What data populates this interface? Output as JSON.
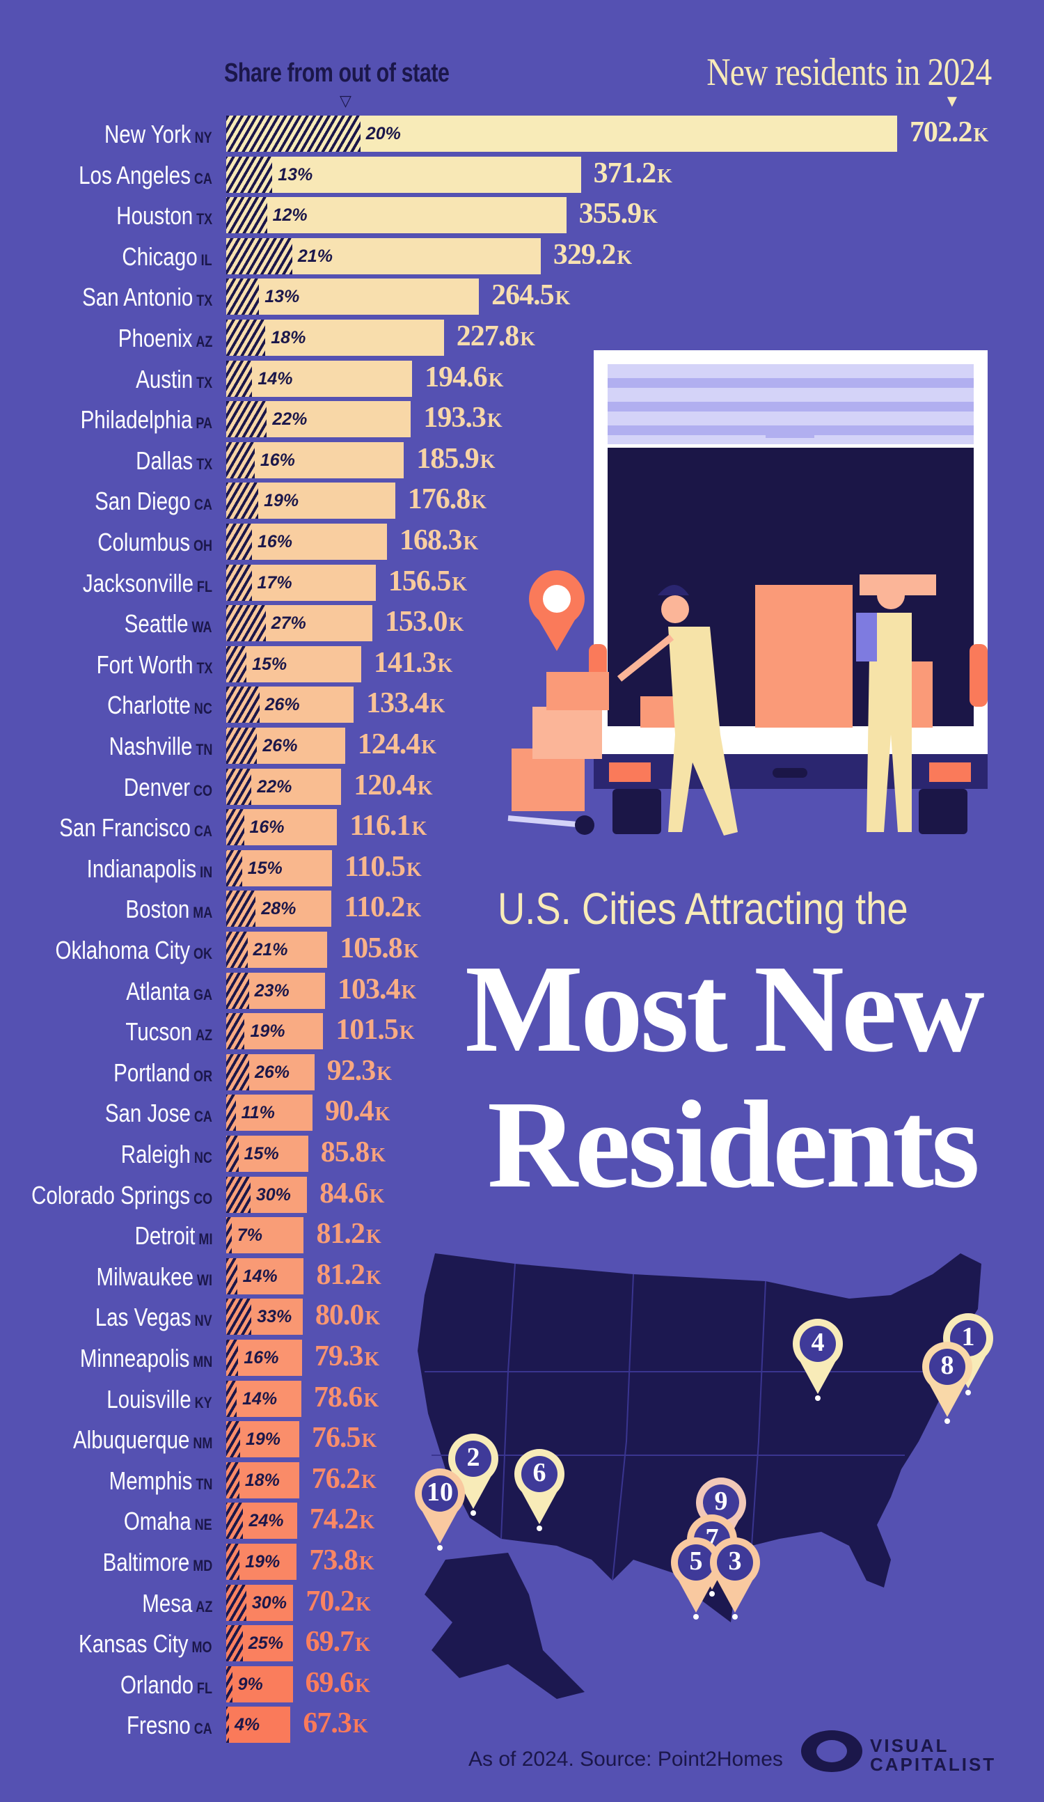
{
  "chart_data": {
    "type": "bar",
    "title": "U.S. Cities Attracting the Most New Residents",
    "title_parts": [
      "U.S. Cities Attracting the",
      "Most New",
      "Residents"
    ],
    "value_header": "New residents in 2024",
    "share_header": "Share from out of state",
    "unit_suffix": "K",
    "orientation": "horizontal",
    "colors": {
      "top": "#f8ebb8",
      "bottom": "#fa7a5a",
      "hatch": "#1b174a",
      "background": "#5551b2"
    },
    "rows": [
      {
        "city": "New York",
        "state": "NY",
        "value": 702.2,
        "share": 20
      },
      {
        "city": "Los Angeles",
        "state": "CA",
        "value": 371.2,
        "share": 13
      },
      {
        "city": "Houston",
        "state": "TX",
        "value": 355.9,
        "share": 12
      },
      {
        "city": "Chicago",
        "state": "IL",
        "value": 329.2,
        "share": 21
      },
      {
        "city": "San Antonio",
        "state": "TX",
        "value": 264.5,
        "share": 13
      },
      {
        "city": "Phoenix",
        "state": "AZ",
        "value": 227.8,
        "share": 18
      },
      {
        "city": "Austin",
        "state": "TX",
        "value": 194.6,
        "share": 14
      },
      {
        "city": "Philadelphia",
        "state": "PA",
        "value": 193.3,
        "share": 22
      },
      {
        "city": "Dallas",
        "state": "TX",
        "value": 185.9,
        "share": 16
      },
      {
        "city": "San Diego",
        "state": "CA",
        "value": 176.8,
        "share": 19
      },
      {
        "city": "Columbus",
        "state": "OH",
        "value": 168.3,
        "share": 16
      },
      {
        "city": "Jacksonville",
        "state": "FL",
        "value": 156.5,
        "share": 17
      },
      {
        "city": "Seattle",
        "state": "WA",
        "value": 153.0,
        "share": 27
      },
      {
        "city": "Fort Worth",
        "state": "TX",
        "value": 141.3,
        "share": 15
      },
      {
        "city": "Charlotte",
        "state": "NC",
        "value": 133.4,
        "share": 26
      },
      {
        "city": "Nashville",
        "state": "TN",
        "value": 124.4,
        "share": 26
      },
      {
        "city": "Denver",
        "state": "CO",
        "value": 120.4,
        "share": 22
      },
      {
        "city": "San Francisco",
        "state": "CA",
        "value": 116.1,
        "share": 16
      },
      {
        "city": "Indianapolis",
        "state": "IN",
        "value": 110.5,
        "share": 15
      },
      {
        "city": "Boston",
        "state": "MA",
        "value": 110.2,
        "share": 28
      },
      {
        "city": "Oklahoma City",
        "state": "OK",
        "value": 105.8,
        "share": 21
      },
      {
        "city": "Atlanta",
        "state": "GA",
        "value": 103.4,
        "share": 23
      },
      {
        "city": "Tucson",
        "state": "AZ",
        "value": 101.5,
        "share": 19
      },
      {
        "city": "Portland",
        "state": "OR",
        "value": 92.3,
        "share": 26
      },
      {
        "city": "San Jose",
        "state": "CA",
        "value": 90.4,
        "share": 11
      },
      {
        "city": "Raleigh",
        "state": "NC",
        "value": 85.8,
        "share": 15
      },
      {
        "city": "Colorado Springs",
        "state": "CO",
        "value": 84.6,
        "share": 30
      },
      {
        "city": "Detroit",
        "state": "MI",
        "value": 81.2,
        "share": 7
      },
      {
        "city": "Milwaukee",
        "state": "WI",
        "value": 81.2,
        "share": 14
      },
      {
        "city": "Las Vegas",
        "state": "NV",
        "value": 80.0,
        "share": 33
      },
      {
        "city": "Minneapolis",
        "state": "MN",
        "value": 79.3,
        "share": 16
      },
      {
        "city": "Louisville",
        "state": "KY",
        "value": 78.6,
        "share": 14
      },
      {
        "city": "Albuquerque",
        "state": "NM",
        "value": 76.5,
        "share": 19
      },
      {
        "city": "Memphis",
        "state": "TN",
        "value": 76.2,
        "share": 18
      },
      {
        "city": "Omaha",
        "state": "NE",
        "value": 74.2,
        "share": 24
      },
      {
        "city": "Baltimore",
        "state": "MD",
        "value": 73.8,
        "share": 19
      },
      {
        "city": "Mesa",
        "state": "AZ",
        "value": 70.2,
        "share": 30
      },
      {
        "city": "Kansas City",
        "state": "MO",
        "value": 69.7,
        "share": 25
      },
      {
        "city": "Orlando",
        "state": "FL",
        "value": 69.6,
        "share": 9
      },
      {
        "city": "Fresno",
        "state": "CA",
        "value": 67.3,
        "share": 4
      }
    ]
  },
  "map": {
    "pins": [
      "1",
      "8",
      "4",
      "2",
      "10",
      "6",
      "9",
      "7",
      "5",
      "3"
    ]
  },
  "footer": {
    "source": "As of 2024. Source: Point2Homes"
  },
  "logo": {
    "line1": "VISUAL",
    "line2": "CAPITALIST"
  }
}
